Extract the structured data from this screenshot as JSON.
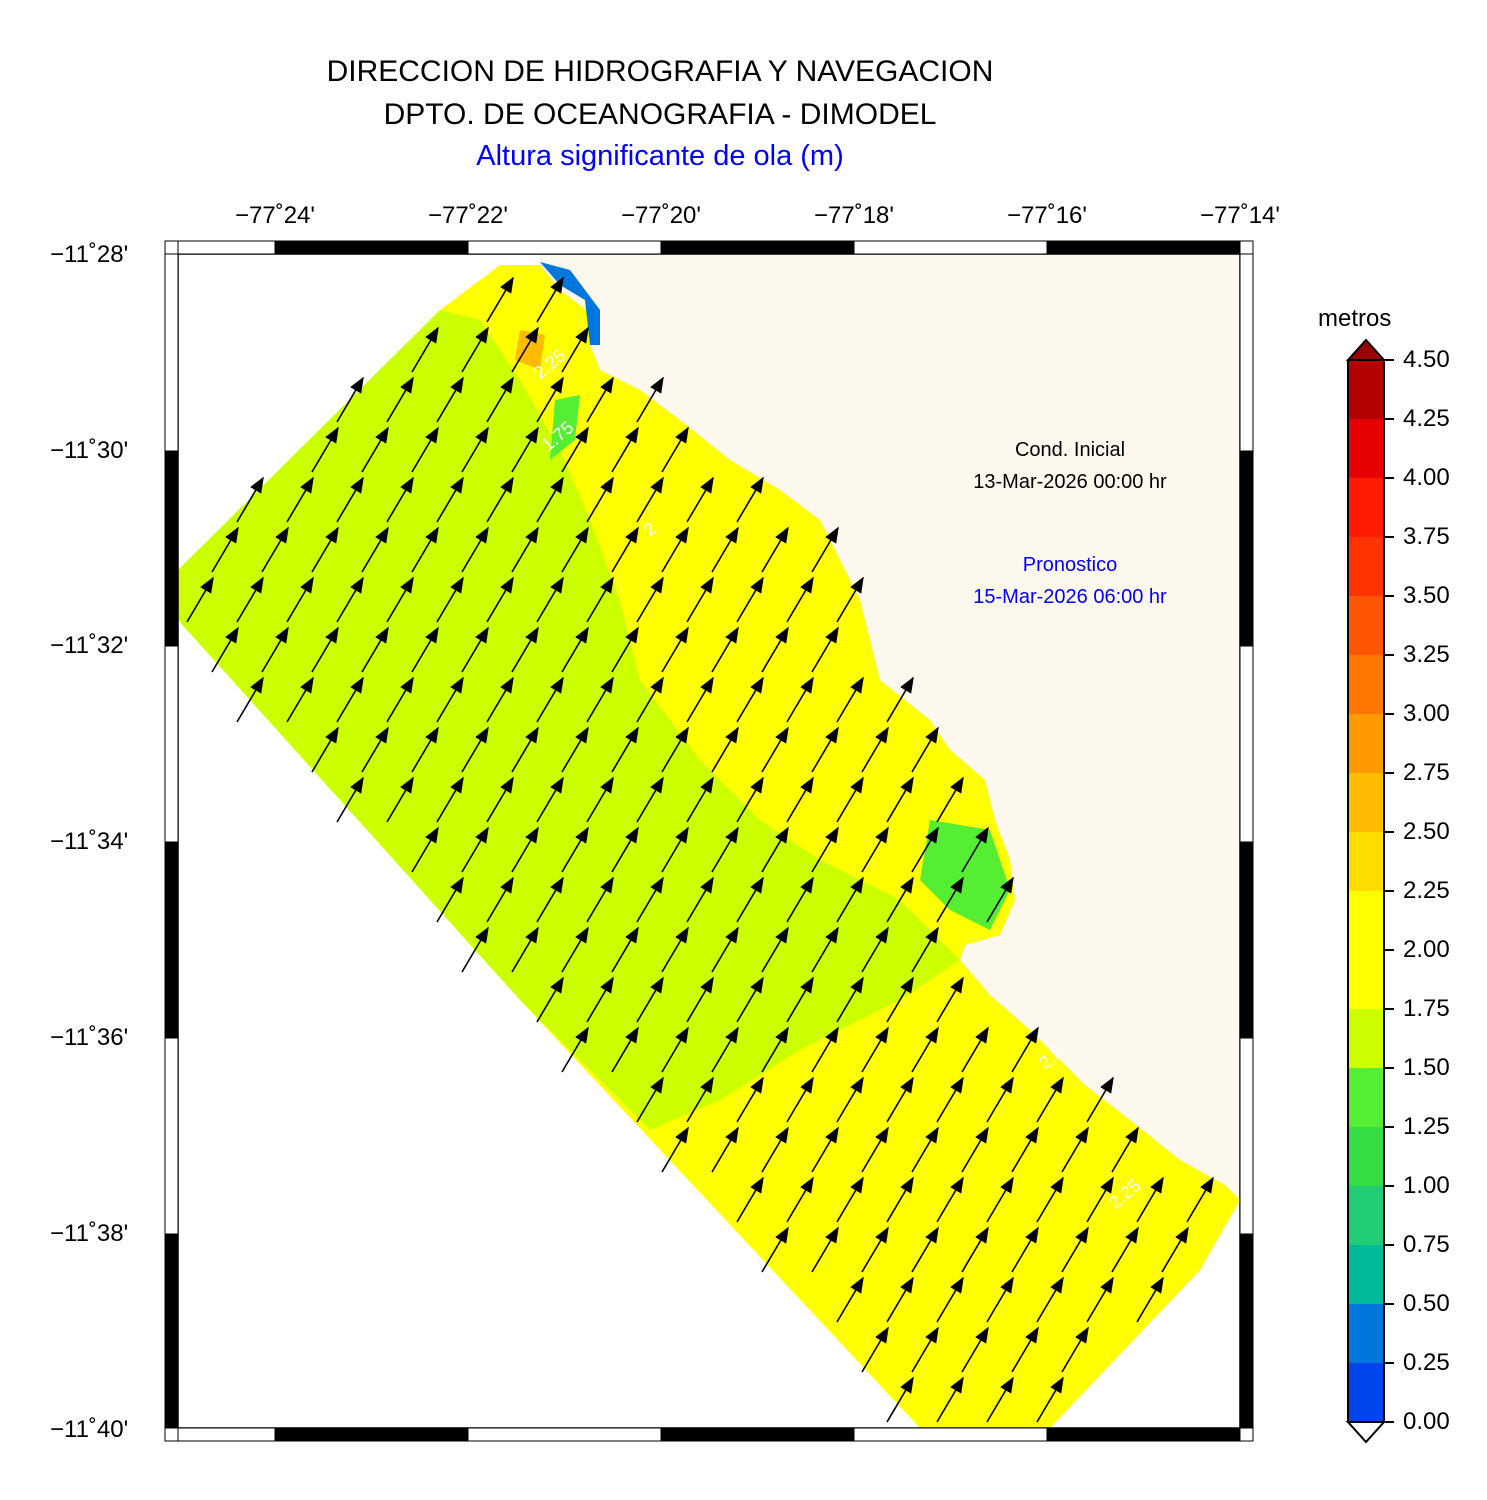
{
  "header": {
    "line1": "DIRECCION DE HIDROGRAFIA Y NAVEGACION",
    "line2": "DPTO. DE OCEANOGRAFIA - DIMODEL",
    "subtitle": "Altura significante de ola (m)"
  },
  "axes": {
    "x_ticks": [
      "−77˚24'",
      "−77˚22'",
      "−77˚20'",
      "−77˚18'",
      "−77˚16'",
      "−77˚14'"
    ],
    "y_ticks": [
      "−11˚28'",
      "−11˚30'",
      "−11˚32'",
      "−11˚34'",
      "−11˚36'",
      "−11˚38'",
      "−11˚40'"
    ],
    "lon_range": [
      -77.4167,
      -77.2333
    ],
    "lat_range": [
      -11.6667,
      -11.4667
    ]
  },
  "info": {
    "initial_label": "Cond. Inicial",
    "initial_date": "13-Mar-2026 00:00 hr",
    "forecast_label": "Pronostico",
    "forecast_date": "15-Mar-2026 06:00 hr"
  },
  "colorbar": {
    "title": "metros",
    "ticks": [
      "4.50",
      "4.25",
      "4.00",
      "3.75",
      "3.50",
      "3.25",
      "3.00",
      "2.75",
      "2.50",
      "2.25",
      "2.00",
      "1.75",
      "1.50",
      "1.25",
      "1.00",
      "0.75",
      "0.50",
      "0.25",
      "0.00"
    ],
    "colors": [
      "#b30000",
      "#e60000",
      "#ff1a00",
      "#ff3300",
      "#ff5500",
      "#ff7700",
      "#ff9900",
      "#ffbb00",
      "#ffdd00",
      "#ffff00",
      "#ffff00",
      "#ccff00",
      "#55ee33",
      "#33dd44",
      "#22cc77",
      "#00bb99",
      "#0077dd",
      "#0044ee",
      "#0022ee"
    ],
    "colors_note": "",
    "over_color": "#990000",
    "under_color": "#ffffff"
  },
  "map": {
    "land_color": "#fcf8ee",
    "field_color_main": "#ffff00",
    "field_color_low": "#ccff00",
    "patch_color": "#55ee33",
    "coast_band_color": "#0077dd",
    "contour_labels": [
      "2.25",
      "1.75",
      "2",
      "2.5",
      "2.25"
    ],
    "wave_direction": "toward NE"
  }
}
